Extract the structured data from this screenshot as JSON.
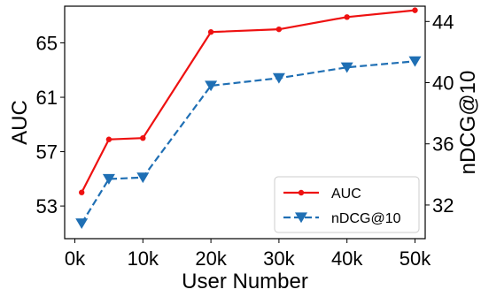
{
  "chart_data": {
    "type": "line",
    "xlabel": "User Number",
    "ylabel_left": "AUC",
    "ylabel_right": "nDCG@10",
    "x_values": [
      1,
      5,
      10,
      20,
      30,
      40,
      50
    ],
    "x_ticks": [
      0,
      10,
      20,
      30,
      40,
      50
    ],
    "x_tick_labels": [
      "0k",
      "10k",
      "20k",
      "30k",
      "40k",
      "50k"
    ],
    "xlim": [
      -1.5,
      51.5
    ],
    "y_left_ticks": [
      53,
      57,
      61,
      65
    ],
    "y_left_tick_labels": [
      "53",
      "57",
      "61",
      "65"
    ],
    "y_left_lim": [
      50.6,
      67.7
    ],
    "y_right_ticks": [
      32,
      36,
      40,
      44
    ],
    "y_right_tick_labels": [
      "32",
      "36",
      "40",
      "44"
    ],
    "y_right_lim": [
      29.8,
      45.0
    ],
    "series": [
      {
        "name": "AUC",
        "axis": "left",
        "color": "#ee1111",
        "line_style": "solid",
        "marker": "circle",
        "values": [
          54.0,
          57.9,
          58.0,
          65.8,
          66.0,
          66.9,
          67.4
        ]
      },
      {
        "name": "nDCG@10",
        "axis": "right",
        "color": "#1f6fb4",
        "line_style": "dashed",
        "marker": "triangle-down",
        "values": [
          30.8,
          33.7,
          33.8,
          39.8,
          40.3,
          41.0,
          41.4
        ]
      }
    ],
    "legend": {
      "placement": "lower-right",
      "entries": [
        "AUC",
        "nDCG@10"
      ]
    },
    "grid": false
  }
}
